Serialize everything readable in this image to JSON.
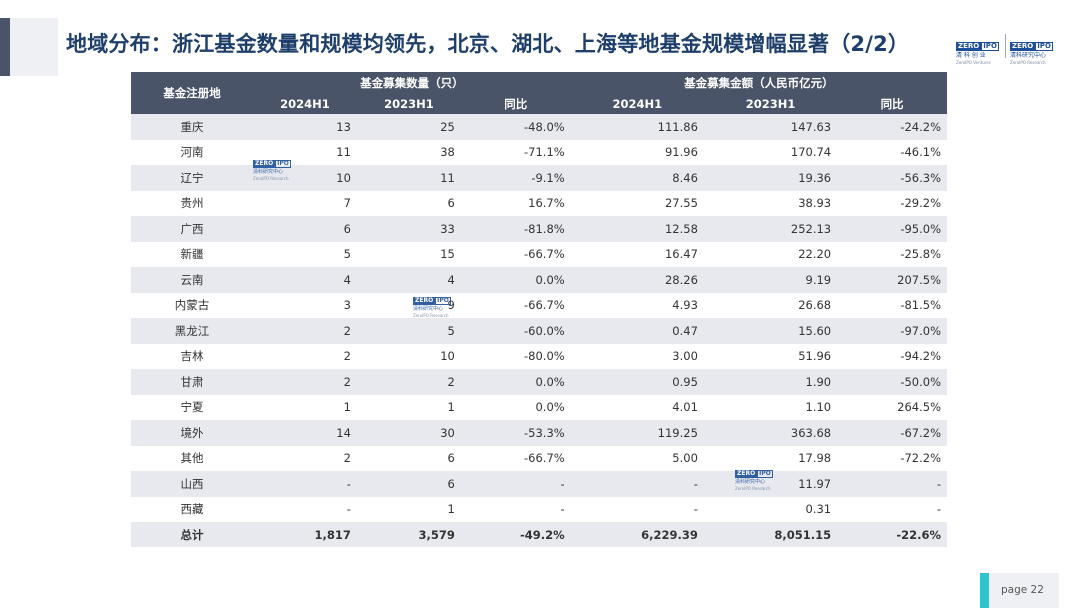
{
  "title": "地域分布：浙江基金数量和规模均领先，北京、湖北、上海等地基金规模增幅显著（2/2）",
  "logos": {
    "zero_left": "ZERO",
    "zero_right": "IPO",
    "cn_a": "清 科 创 业",
    "en_a": "ZeroIPO Ventures",
    "cn_b": "清科研究中心",
    "en_b": "ZeroIPO Research"
  },
  "table": {
    "col_region": "基金注册地",
    "group_count": "基金募集数量（只）",
    "group_amount": "基金募集金额（人民币亿元）",
    "sub": [
      "2024H1",
      "2023H1",
      "同比",
      "2024H1",
      "2023H1",
      "同比"
    ],
    "rows": [
      [
        "重庆",
        "13",
        "25",
        "-48.0%",
        "111.86",
        "147.63",
        "-24.2%"
      ],
      [
        "河南",
        "11",
        "38",
        "-71.1%",
        "91.96",
        "170.74",
        "-46.1%"
      ],
      [
        "辽宁",
        "10",
        "11",
        "-9.1%",
        "8.46",
        "19.36",
        "-56.3%"
      ],
      [
        "贵州",
        "7",
        "6",
        "16.7%",
        "27.55",
        "38.93",
        "-29.2%"
      ],
      [
        "广西",
        "6",
        "33",
        "-81.8%",
        "12.58",
        "252.13",
        "-95.0%"
      ],
      [
        "新疆",
        "5",
        "15",
        "-66.7%",
        "16.47",
        "22.20",
        "-25.8%"
      ],
      [
        "云南",
        "4",
        "4",
        "0.0%",
        "28.26",
        "9.19",
        "207.5%"
      ],
      [
        "内蒙古",
        "3",
        "9",
        "-66.7%",
        "4.93",
        "26.68",
        "-81.5%"
      ],
      [
        "黑龙江",
        "2",
        "5",
        "-60.0%",
        "0.47",
        "15.60",
        "-97.0%"
      ],
      [
        "吉林",
        "2",
        "10",
        "-80.0%",
        "3.00",
        "51.96",
        "-94.2%"
      ],
      [
        "甘肃",
        "2",
        "2",
        "0.0%",
        "0.95",
        "1.90",
        "-50.0%"
      ],
      [
        "宁夏",
        "1",
        "1",
        "0.0%",
        "4.01",
        "1.10",
        "264.5%"
      ],
      [
        "境外",
        "14",
        "30",
        "-53.3%",
        "119.25",
        "363.68",
        "-67.2%"
      ],
      [
        "其他",
        "2",
        "6",
        "-66.7%",
        "5.00",
        "17.98",
        "-72.2%"
      ],
      [
        "山西",
        "-",
        "6",
        "-",
        "-",
        "11.97",
        "-"
      ],
      [
        "西藏",
        "-",
        "1",
        "-",
        "-",
        "0.31",
        "-"
      ]
    ],
    "total": [
      "总计",
      "1,817",
      "3,579",
      "-49.2%",
      "6,229.39",
      "8,051.15",
      "-22.6%"
    ]
  },
  "page": "page  22"
}
